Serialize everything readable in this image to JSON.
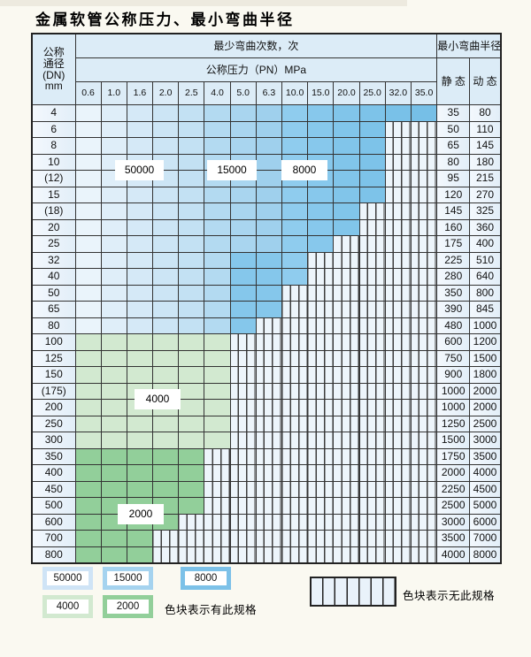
{
  "title": "金属软管公称压力、最小弯曲半径",
  "table": {
    "header": {
      "dn_label_lines": [
        "公称",
        "通径",
        "(DN)",
        "mm"
      ],
      "cycles_label": "最少弯曲次数，次",
      "pressure_label": "公称压力（PN）MPa",
      "radius_label": "最小弯曲半径",
      "static_label": "静 态",
      "dynamic_label": "动 态",
      "pressures": [
        "0.6",
        "1.0",
        "1.6",
        "2.0",
        "2.5",
        "4.0",
        "5.0",
        "6.3",
        "10.0",
        "15.0",
        "20.0",
        "25.0",
        "32.0",
        "35.0"
      ]
    },
    "cell_code_meaning": {
      "0": "no-spec-hatched",
      "1": "cycles-50000",
      "2": "cycles-15000",
      "3": "cycles-8000",
      "4": "cycles-4000",
      "5": "cycles-2000"
    },
    "rows": [
      {
        "dn": "4",
        "cells": [
          1,
          1,
          1,
          1,
          1,
          2,
          2,
          2,
          3,
          3,
          3,
          3,
          3,
          3
        ],
        "static": "35",
        "dynamic": "80"
      },
      {
        "dn": "6",
        "cells": [
          1,
          1,
          1,
          1,
          1,
          2,
          2,
          2,
          3,
          3,
          3,
          3,
          0,
          0
        ],
        "static": "50",
        "dynamic": "110"
      },
      {
        "dn": "8",
        "cells": [
          1,
          1,
          1,
          1,
          1,
          2,
          2,
          2,
          3,
          3,
          3,
          3,
          0,
          0
        ],
        "static": "65",
        "dynamic": "145"
      },
      {
        "dn": "10",
        "cells": [
          1,
          1,
          1,
          1,
          1,
          2,
          2,
          2,
          3,
          3,
          3,
          3,
          0,
          0
        ],
        "static": "80",
        "dynamic": "180"
      },
      {
        "dn": "(12)",
        "cells": [
          1,
          1,
          1,
          1,
          1,
          2,
          2,
          2,
          3,
          3,
          3,
          3,
          0,
          0
        ],
        "static": "95",
        "dynamic": "215"
      },
      {
        "dn": "15",
        "cells": [
          1,
          1,
          1,
          1,
          1,
          2,
          2,
          2,
          3,
          3,
          3,
          3,
          0,
          0
        ],
        "static": "120",
        "dynamic": "270"
      },
      {
        "dn": "(18)",
        "cells": [
          1,
          1,
          1,
          1,
          1,
          2,
          2,
          2,
          3,
          3,
          3,
          0,
          0,
          0
        ],
        "static": "145",
        "dynamic": "325"
      },
      {
        "dn": "20",
        "cells": [
          1,
          1,
          1,
          1,
          1,
          2,
          2,
          2,
          3,
          3,
          3,
          0,
          0,
          0
        ],
        "static": "160",
        "dynamic": "360"
      },
      {
        "dn": "25",
        "cells": [
          1,
          1,
          1,
          1,
          1,
          2,
          2,
          2,
          3,
          3,
          0,
          0,
          0,
          0
        ],
        "static": "175",
        "dynamic": "400"
      },
      {
        "dn": "32",
        "cells": [
          1,
          1,
          1,
          1,
          1,
          2,
          3,
          3,
          3,
          0,
          0,
          0,
          0,
          0
        ],
        "static": "225",
        "dynamic": "510"
      },
      {
        "dn": "40",
        "cells": [
          1,
          1,
          1,
          1,
          1,
          2,
          3,
          3,
          3,
          0,
          0,
          0,
          0,
          0
        ],
        "static": "280",
        "dynamic": "640"
      },
      {
        "dn": "50",
        "cells": [
          1,
          1,
          1,
          1,
          1,
          2,
          3,
          3,
          0,
          0,
          0,
          0,
          0,
          0
        ],
        "static": "350",
        "dynamic": "800"
      },
      {
        "dn": "65",
        "cells": [
          1,
          1,
          1,
          1,
          1,
          2,
          3,
          3,
          0,
          0,
          0,
          0,
          0,
          0
        ],
        "static": "390",
        "dynamic": "845"
      },
      {
        "dn": "80",
        "cells": [
          1,
          1,
          1,
          1,
          1,
          2,
          3,
          0,
          0,
          0,
          0,
          0,
          0,
          0
        ],
        "static": "480",
        "dynamic": "1000"
      },
      {
        "dn": "100",
        "cells": [
          4,
          4,
          4,
          4,
          4,
          4,
          0,
          0,
          0,
          0,
          0,
          0,
          0,
          0
        ],
        "static": "600",
        "dynamic": "1200"
      },
      {
        "dn": "125",
        "cells": [
          4,
          4,
          4,
          4,
          4,
          4,
          0,
          0,
          0,
          0,
          0,
          0,
          0,
          0
        ],
        "static": "750",
        "dynamic": "1500"
      },
      {
        "dn": "150",
        "cells": [
          4,
          4,
          4,
          4,
          4,
          4,
          0,
          0,
          0,
          0,
          0,
          0,
          0,
          0
        ],
        "static": "900",
        "dynamic": "1800"
      },
      {
        "dn": "(175)",
        "cells": [
          4,
          4,
          4,
          4,
          4,
          4,
          0,
          0,
          0,
          0,
          0,
          0,
          0,
          0
        ],
        "static": "1000",
        "dynamic": "2000"
      },
      {
        "dn": "200",
        "cells": [
          4,
          4,
          4,
          4,
          4,
          4,
          0,
          0,
          0,
          0,
          0,
          0,
          0,
          0
        ],
        "static": "1000",
        "dynamic": "2000"
      },
      {
        "dn": "250",
        "cells": [
          4,
          4,
          4,
          4,
          4,
          4,
          0,
          0,
          0,
          0,
          0,
          0,
          0,
          0
        ],
        "static": "1250",
        "dynamic": "2500"
      },
      {
        "dn": "300",
        "cells": [
          4,
          4,
          4,
          4,
          4,
          4,
          0,
          0,
          0,
          0,
          0,
          0,
          0,
          0
        ],
        "static": "1500",
        "dynamic": "3000"
      },
      {
        "dn": "350",
        "cells": [
          5,
          5,
          5,
          5,
          5,
          0,
          0,
          0,
          0,
          0,
          0,
          0,
          0,
          0
        ],
        "static": "1750",
        "dynamic": "3500"
      },
      {
        "dn": "400",
        "cells": [
          5,
          5,
          5,
          5,
          5,
          0,
          0,
          0,
          0,
          0,
          0,
          0,
          0,
          0
        ],
        "static": "2000",
        "dynamic": "4000"
      },
      {
        "dn": "450",
        "cells": [
          5,
          5,
          5,
          5,
          5,
          0,
          0,
          0,
          0,
          0,
          0,
          0,
          0,
          0
        ],
        "static": "2250",
        "dynamic": "4500"
      },
      {
        "dn": "500",
        "cells": [
          5,
          5,
          5,
          5,
          5,
          0,
          0,
          0,
          0,
          0,
          0,
          0,
          0,
          0
        ],
        "static": "2500",
        "dynamic": "5000"
      },
      {
        "dn": "600",
        "cells": [
          5,
          5,
          5,
          5,
          0,
          0,
          0,
          0,
          0,
          0,
          0,
          0,
          0,
          0
        ],
        "static": "3000",
        "dynamic": "6000"
      },
      {
        "dn": "700",
        "cells": [
          5,
          5,
          5,
          0,
          0,
          0,
          0,
          0,
          0,
          0,
          0,
          0,
          0,
          0
        ],
        "static": "3500",
        "dynamic": "7000"
      },
      {
        "dn": "800",
        "cells": [
          5,
          5,
          5,
          0,
          0,
          0,
          0,
          0,
          0,
          0,
          0,
          0,
          0,
          0
        ],
        "static": "4000",
        "dynamic": "8000"
      }
    ]
  },
  "overlays": {
    "label_50000": "50000",
    "label_15000": "15000",
    "label_8000": "8000",
    "label_4000": "4000",
    "label_2000": "2000"
  },
  "legend": {
    "chips": [
      {
        "label": "50000",
        "color": "#cfe4f6"
      },
      {
        "label": "15000",
        "color": "#a5d3ef"
      },
      {
        "label": "8000",
        "color": "#7cc1e8"
      },
      {
        "label": "4000",
        "color": "#d2e9d0"
      },
      {
        "label": "2000",
        "color": "#92cf9a"
      }
    ],
    "has_spec_text": "色块表示有此规格",
    "no_spec_text": "色块表示无此规格"
  },
  "colors": {
    "cycles_50000": "#cfe4f6",
    "cycles_15000": "#a5d3ef",
    "cycles_8000": "#7cc1e8",
    "cycles_4000": "#d2e9d0",
    "cycles_2000": "#92cf9a",
    "header_bg": "#dcecf7",
    "hatch_bg": "#edf5fb",
    "grid_line": "#333333"
  }
}
